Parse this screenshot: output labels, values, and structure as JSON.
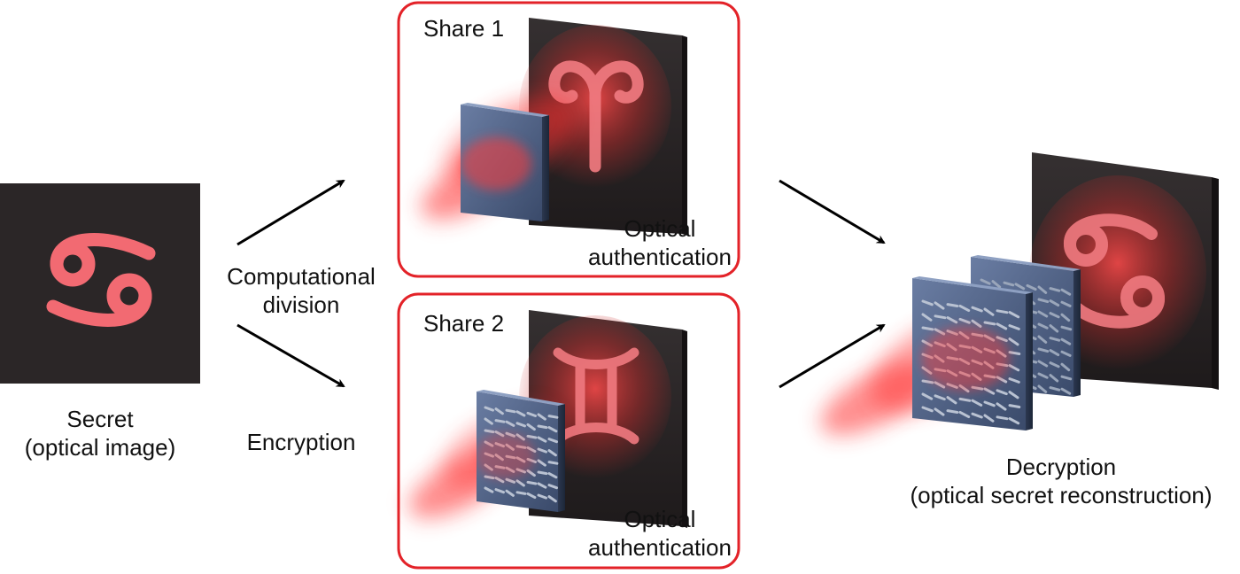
{
  "secret": {
    "line1": "Secret",
    "line2": "(optical image)",
    "symbol_icon": "cancer-zodiac-icon"
  },
  "division": {
    "line1": "Computational",
    "line2": "division"
  },
  "encryption": {
    "label": "Encryption"
  },
  "share1": {
    "title": "Share 1",
    "auth_line1": "Optical",
    "auth_line2": "authentication",
    "symbol_icon": "aries-zodiac-icon"
  },
  "share2": {
    "title": "Share 2",
    "auth_line1": "Optical",
    "auth_line2": "authentication",
    "symbol_icon": "gemini-zodiac-icon"
  },
  "decryption": {
    "line1": "Decryption",
    "line2": "(optical secret reconstruction)",
    "symbol_icon": "cancer-zodiac-icon"
  },
  "colors": {
    "box_border": "#e32228",
    "glow": "#ff3b3b",
    "symbol": "#f26a72",
    "screen": "#2a2526",
    "metasurface": "#4a5d80"
  }
}
